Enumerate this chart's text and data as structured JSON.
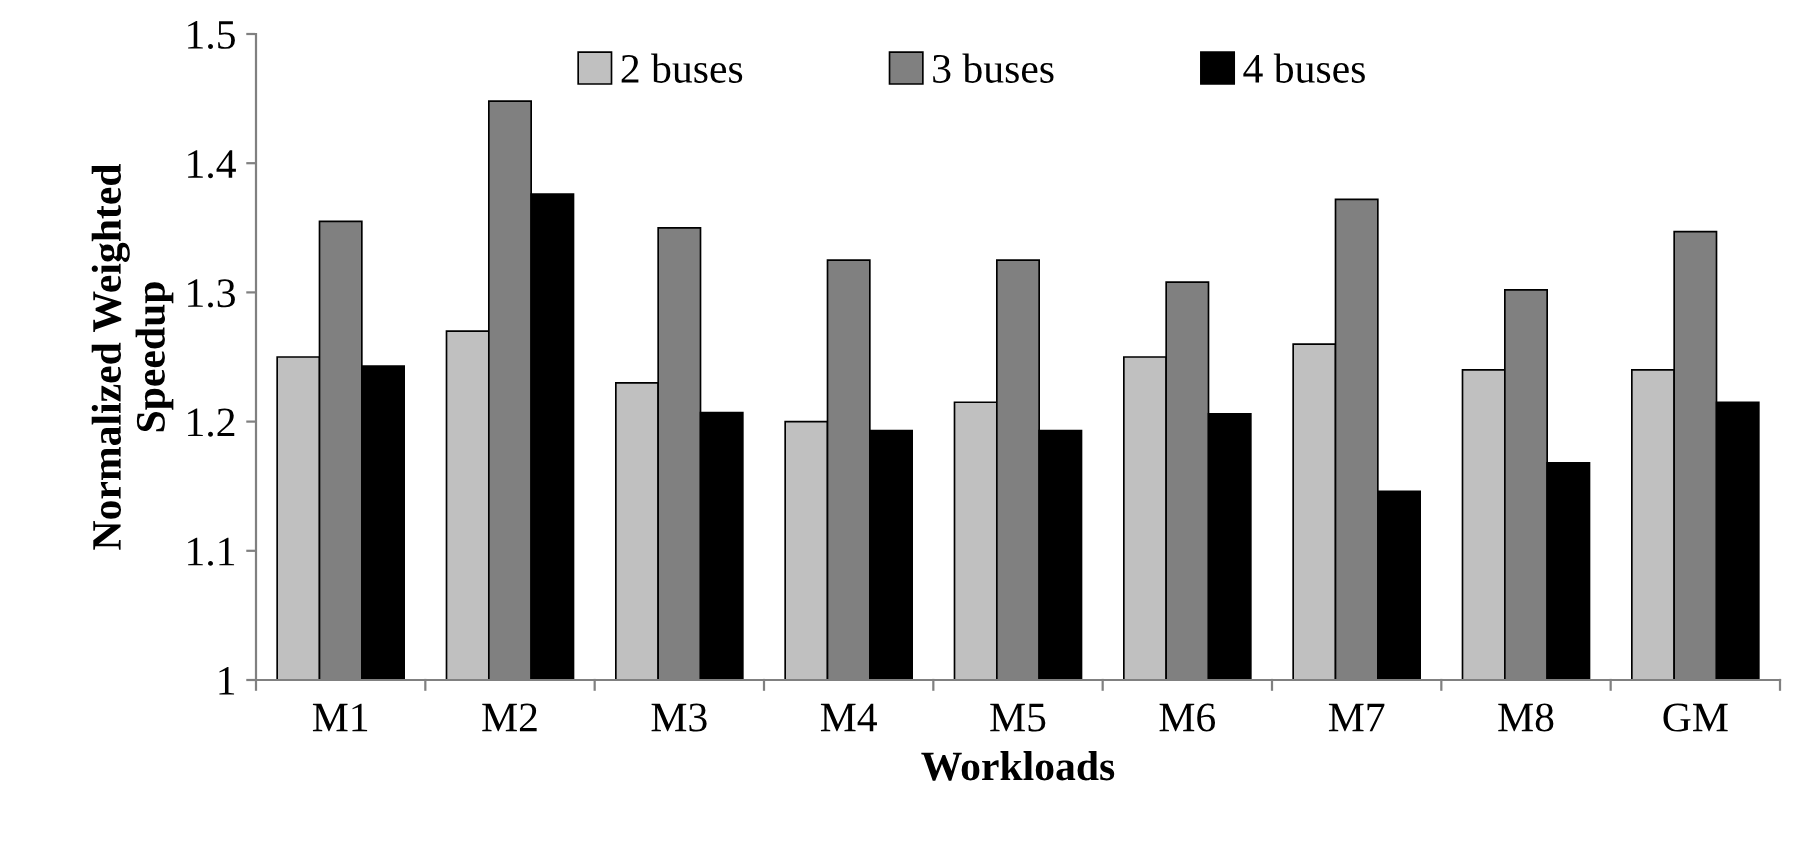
{
  "chart_data": {
    "type": "bar",
    "xlabel": "Workloads",
    "ylabel": "Normalized Weighted\nSpeedup",
    "categories": [
      "M1",
      "M2",
      "M3",
      "M4",
      "M5",
      "M6",
      "M7",
      "M8",
      "GM"
    ],
    "series": [
      {
        "name": "2 buses",
        "color": "#c0c0c0",
        "values": [
          1.25,
          1.27,
          1.23,
          1.2,
          1.215,
          1.25,
          1.26,
          1.24,
          1.24
        ]
      },
      {
        "name": "3 buses",
        "color": "#808080",
        "values": [
          1.355,
          1.448,
          1.35,
          1.325,
          1.325,
          1.308,
          1.372,
          1.302,
          1.347
        ]
      },
      {
        "name": "4 buses",
        "color": "#000000",
        "values": [
          1.243,
          1.376,
          1.207,
          1.193,
          1.193,
          1.206,
          1.146,
          1.168,
          1.215
        ]
      }
    ],
    "ylim": [
      1,
      1.5
    ],
    "yticks": [
      1,
      1.1,
      1.2,
      1.3,
      1.4,
      1.5
    ],
    "grid": false,
    "legend": "top"
  }
}
